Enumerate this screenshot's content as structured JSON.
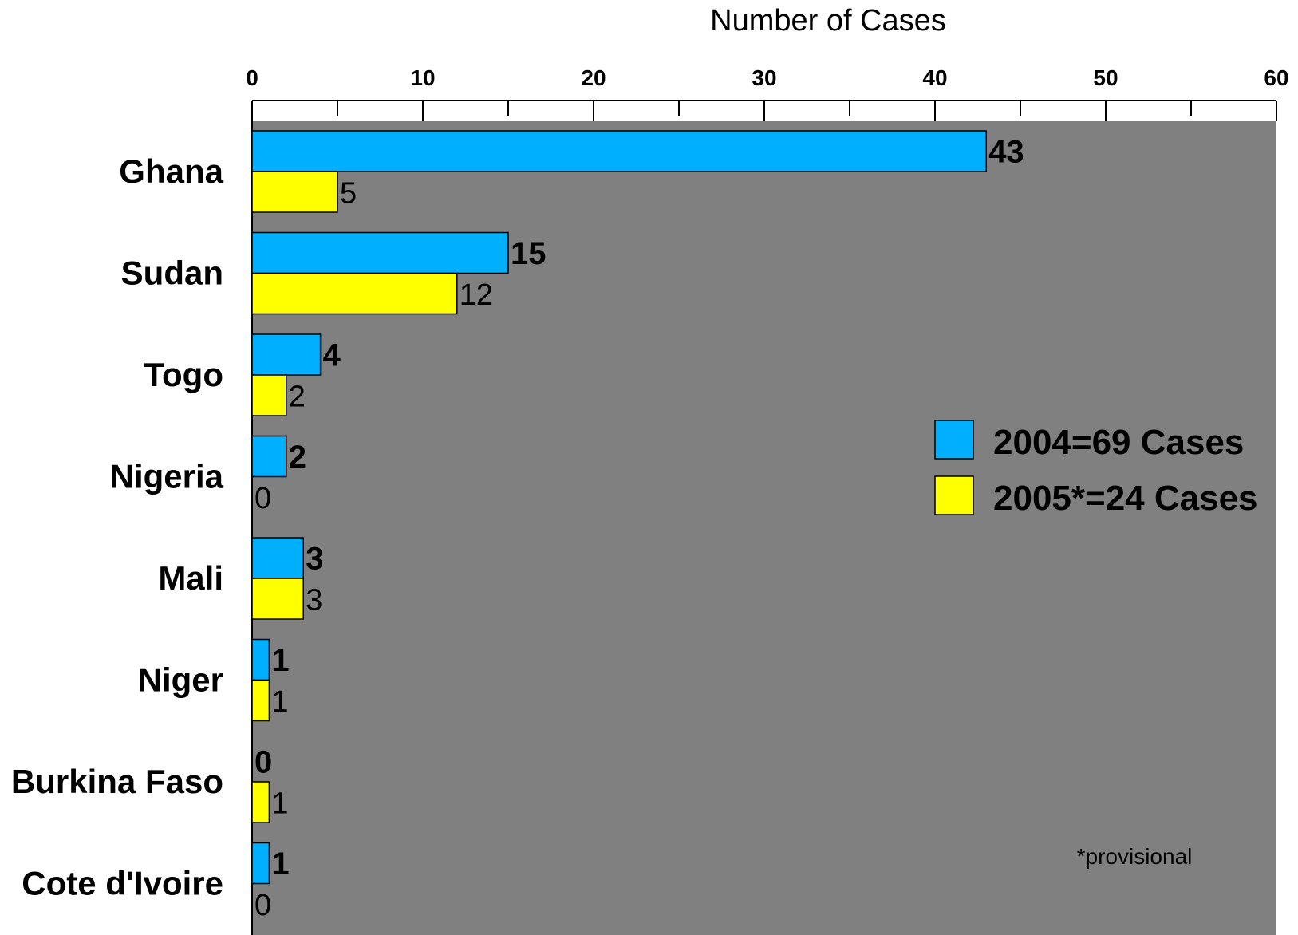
{
  "chart_data": {
    "type": "bar",
    "orientation": "horizontal",
    "title": "",
    "xlabel": "Number of Cases",
    "ylabel": "",
    "xlim": [
      0,
      60
    ],
    "x_ticks": [
      "0",
      "10",
      "20",
      "30",
      "40",
      "50",
      "60"
    ],
    "x_axis_position": "top",
    "grid": false,
    "legend_position": "right",
    "background": "#808080",
    "categories": [
      "Ghana",
      "Sudan",
      "Togo",
      "Nigeria",
      "Mali",
      "Niger",
      "Burkina Faso",
      "Cote d'Ivoire"
    ],
    "series": [
      {
        "name": "2004=69 Cases",
        "color": "#00b0ff",
        "values": [
          43,
          15,
          4,
          2,
          3,
          1,
          0,
          1
        ]
      },
      {
        "name": "2005*=24 Cases",
        "color": "#ffff00",
        "values": [
          5,
          12,
          2,
          0,
          3,
          1,
          1,
          0
        ]
      }
    ],
    "annotation": "*provisional"
  }
}
